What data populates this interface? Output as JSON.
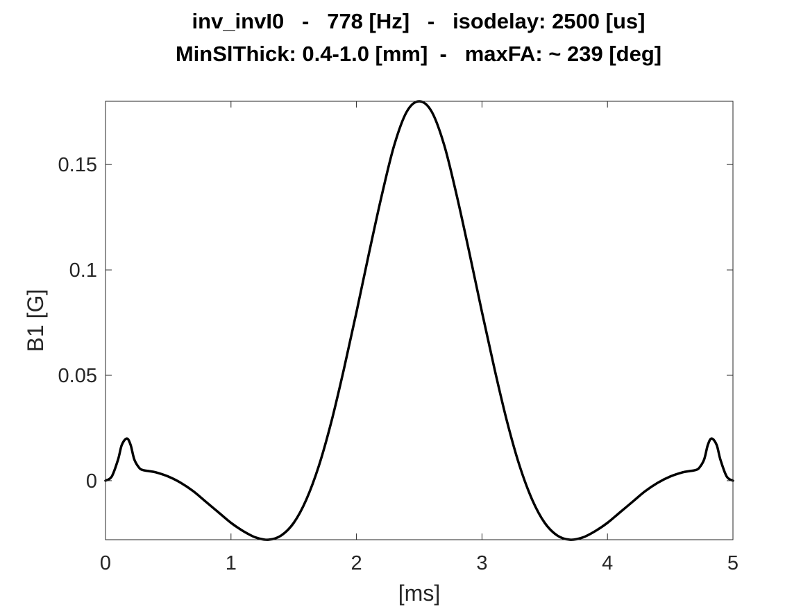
{
  "chart_data": {
    "type": "line",
    "title_lines": [
      "inv_invI0   -   778 [Hz]   -   isodelay: 2500 [us]",
      "MinSlThick: 0.4-1.0 [mm]  -   maxFA: ~ 239 [deg]"
    ],
    "xlabel": "[ms]",
    "ylabel": "B1 [G]",
    "xlim": [
      0,
      5
    ],
    "ylim": [
      -0.028,
      0.18
    ],
    "xticks": [
      0,
      1,
      2,
      3,
      4,
      5
    ],
    "xtick_labels": [
      "0",
      "1",
      "2",
      "3",
      "4",
      "5"
    ],
    "yticks": [
      0,
      0.05,
      0.1,
      0.15
    ],
    "ytick_labels": [
      "0",
      "0.05",
      "0.1",
      "0.15"
    ],
    "grid": false,
    "box": true,
    "line_color": "#000000",
    "series": [
      {
        "x": [
          0,
          0.05,
          0.1,
          0.13,
          0.17,
          0.2,
          0.23,
          0.27,
          0.3,
          0.35,
          0.4,
          0.5,
          0.6,
          0.7,
          0.8,
          0.9,
          1.0,
          1.1,
          1.2,
          1.3,
          1.4,
          1.5,
          1.6,
          1.7,
          1.8,
          1.9,
          2.0,
          2.1,
          2.2,
          2.3,
          2.4,
          2.5,
          2.6,
          2.7,
          2.8,
          2.9,
          3.0,
          3.1,
          3.2,
          3.3,
          3.4,
          3.5,
          3.6,
          3.7,
          3.8,
          3.9,
          4.0,
          4.1,
          4.2,
          4.3,
          4.4,
          4.5,
          4.6,
          4.65,
          4.7,
          4.73,
          4.77,
          4.8,
          4.83,
          4.87,
          4.9,
          4.95,
          5.0
        ],
        "y": [
          0,
          0.002,
          0.01,
          0.017,
          0.02,
          0.017,
          0.01,
          0.006,
          0.005,
          0.0045,
          0.004,
          0.002,
          -0.001,
          -0.005,
          -0.01,
          -0.015,
          -0.02,
          -0.024,
          -0.027,
          -0.028,
          -0.026,
          -0.02,
          -0.009,
          0.007,
          0.028,
          0.053,
          0.08,
          0.108,
          0.135,
          0.159,
          0.175,
          0.18,
          0.175,
          0.159,
          0.135,
          0.108,
          0.08,
          0.053,
          0.028,
          0.007,
          -0.009,
          -0.02,
          -0.026,
          -0.028,
          -0.027,
          -0.024,
          -0.02,
          -0.015,
          -0.01,
          -0.005,
          -0.001,
          0.002,
          0.004,
          0.0045,
          0.005,
          0.006,
          0.01,
          0.017,
          0.02,
          0.017,
          0.01,
          0.002,
          0
        ]
      }
    ]
  }
}
